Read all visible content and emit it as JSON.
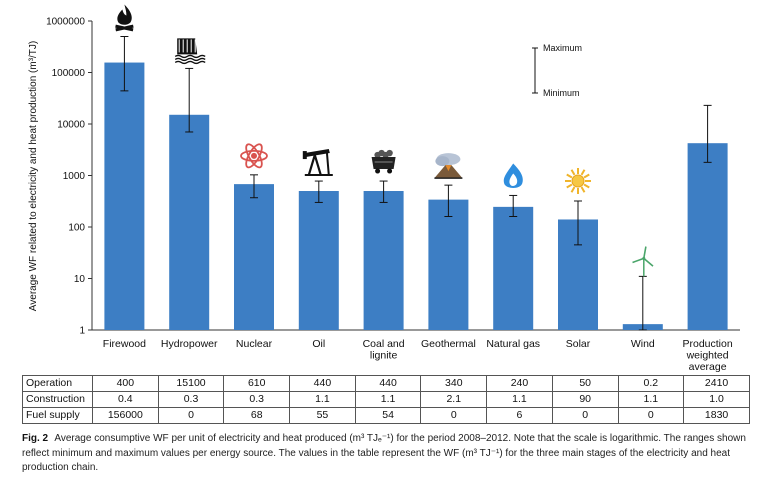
{
  "chart_data": {
    "type": "bar",
    "ylabel": "Average WF related to electricity and heat production (m³/TJ)",
    "yscale": "log",
    "ylim": [
      1,
      1000000
    ],
    "yticks": [
      1,
      10,
      100,
      1000,
      10000,
      100000,
      1000000
    ],
    "ytick_labels": [
      "1",
      "10",
      "100",
      "1000",
      "10000",
      "100000",
      "1000000"
    ],
    "categories": [
      "Firewood",
      "Hydropower",
      "Nuclear",
      "Oil",
      "Coal and lignite",
      "Geothermal",
      "Natural gas",
      "Solar",
      "Wind",
      "Production weighted average"
    ],
    "category_lines": [
      [
        "Firewood"
      ],
      [
        "Hydropower"
      ],
      [
        "Nuclear"
      ],
      [
        "Oil"
      ],
      [
        "Coal and",
        "lignite"
      ],
      [
        "Geothermal"
      ],
      [
        "Natural gas"
      ],
      [
        "Solar"
      ],
      [
        "Wind"
      ],
      [
        "Production",
        "weighted",
        "average"
      ]
    ],
    "icons": [
      "fire-icon",
      "dam-icon",
      "atom-icon",
      "oil-pump-icon",
      "coal-cart-icon",
      "geothermal-icon",
      "gas-flame-icon",
      "sun-icon",
      "wind-turbine-icon",
      ""
    ],
    "values": [
      156000,
      15100,
      680,
      500,
      500,
      340,
      246,
      140,
      1.3,
      4240
    ],
    "minimum": [
      44000,
      7000,
      370,
      300,
      300,
      160,
      160,
      45,
      1.0,
      1800
    ],
    "maximum": [
      500000,
      120000,
      1030,
      780,
      780,
      650,
      410,
      320,
      11,
      23000
    ],
    "bar_color": "#3d7ec4",
    "grid": false,
    "legend": {
      "position": "top-right",
      "maximum_label": "Maximum",
      "minimum_label": "Minimum"
    }
  },
  "table": {
    "rows": [
      {
        "label": "Operation",
        "values": [
          "400",
          "15100",
          "610",
          "440",
          "440",
          "340",
          "240",
          "50",
          "0.2",
          "2410"
        ]
      },
      {
        "label": "Construction",
        "values": [
          "0.4",
          "0.3",
          "0.3",
          "1.1",
          "1.1",
          "2.1",
          "1.1",
          "90",
          "1.1",
          "1.0"
        ]
      },
      {
        "label": "Fuel supply",
        "values": [
          "156000",
          "0",
          "68",
          "55",
          "54",
          "0",
          "6",
          "0",
          "0",
          "1830"
        ]
      }
    ]
  },
  "caption": {
    "label": "Fig. 2",
    "text": "Average consumptive WF per unit of electricity and heat produced (m³ TJₑ⁻¹) for the period 2008–2012. Note that the scale is logarithmic. The ranges shown reflect minimum and maximum values per energy source. The values in the table represent the WF (m³ TJ⁻¹) for the three main stages of the electricity and heat production chain."
  }
}
